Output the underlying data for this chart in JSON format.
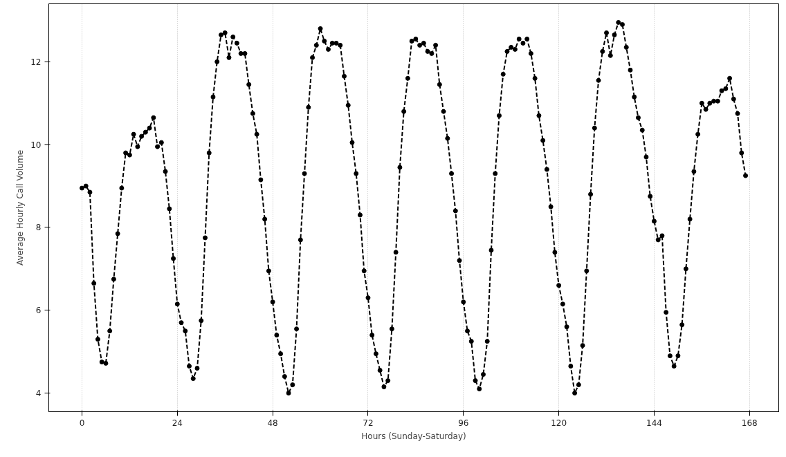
{
  "chart_data": {
    "type": "line",
    "xlabel": "Hours (Sunday-Saturday)",
    "ylabel": "Average Hourly Call Volume",
    "xlim": [
      -8.35,
      175.35
    ],
    "ylim": [
      3.55,
      13.4
    ],
    "xticks": [
      0,
      24,
      48,
      72,
      96,
      120,
      144,
      168
    ],
    "yticks": [
      4,
      6,
      8,
      10,
      12
    ],
    "grid": "x",
    "marker": "circle",
    "line_style": "dashed",
    "x": [
      0,
      1,
      2,
      3,
      4,
      5,
      6,
      7,
      8,
      9,
      10,
      11,
      12,
      13,
      14,
      15,
      16,
      17,
      18,
      19,
      20,
      21,
      22,
      23,
      24,
      25,
      26,
      27,
      28,
      29,
      30,
      31,
      32,
      33,
      34,
      35,
      36,
      37,
      38,
      39,
      40,
      41,
      42,
      43,
      44,
      45,
      46,
      47,
      48,
      49,
      50,
      51,
      52,
      53,
      54,
      55,
      56,
      57,
      58,
      59,
      60,
      61,
      62,
      63,
      64,
      65,
      66,
      67,
      68,
      69,
      70,
      71,
      72,
      73,
      74,
      75,
      76,
      77,
      78,
      79,
      80,
      81,
      82,
      83,
      84,
      85,
      86,
      87,
      88,
      89,
      90,
      91,
      92,
      93,
      94,
      95,
      96,
      97,
      98,
      99,
      100,
      101,
      102,
      103,
      104,
      105,
      106,
      107,
      108,
      109,
      110,
      111,
      112,
      113,
      114,
      115,
      116,
      117,
      118,
      119,
      120,
      121,
      122,
      123,
      124,
      125,
      126,
      127,
      128,
      129,
      130,
      131,
      132,
      133,
      134,
      135,
      136,
      137,
      138,
      139,
      140,
      141,
      142,
      143,
      144,
      145,
      146,
      147,
      148,
      149,
      150,
      151,
      152,
      153,
      154,
      155,
      156,
      157,
      158,
      159,
      160,
      161,
      162,
      163,
      164,
      165,
      166,
      167
    ],
    "series": [
      {
        "color": "#000000",
        "values": [
          8.95,
          9.0,
          8.85,
          6.65,
          5.3,
          4.75,
          4.72,
          5.5,
          6.75,
          7.85,
          8.95,
          9.8,
          9.75,
          10.25,
          9.95,
          10.2,
          10.3,
          10.4,
          10.65,
          9.95,
          10.05,
          9.35,
          8.45,
          7.25,
          6.15,
          5.7,
          5.5,
          4.65,
          4.35,
          4.6,
          5.75,
          7.75,
          9.8,
          11.15,
          12.0,
          12.65,
          12.7,
          12.1,
          12.6,
          12.45,
          12.2,
          12.2,
          11.45,
          10.75,
          10.25,
          9.15,
          8.2,
          6.95,
          6.2,
          5.4,
          4.95,
          4.4,
          4.0,
          4.2,
          5.55,
          7.7,
          9.3,
          10.9,
          12.1,
          12.4,
          12.8,
          12.5,
          12.3,
          12.45,
          12.45,
          12.4,
          11.65,
          10.95,
          10.05,
          9.3,
          8.3,
          6.95,
          6.3,
          5.4,
          4.95,
          4.55,
          4.15,
          4.3,
          5.55,
          7.4,
          9.45,
          10.8,
          11.6,
          12.5,
          12.55,
          12.4,
          12.45,
          12.25,
          12.2,
          12.4,
          11.45,
          10.8,
          10.15,
          9.3,
          8.4,
          7.2,
          6.2,
          5.5,
          5.25,
          4.3,
          4.1,
          4.45,
          5.25,
          7.45,
          9.3,
          10.7,
          11.7,
          12.25,
          12.35,
          12.3,
          12.55,
          12.45,
          12.55,
          12.2,
          11.6,
          10.7,
          10.1,
          9.4,
          8.5,
          7.4,
          6.6,
          6.15,
          5.6,
          4.65,
          4.0,
          4.2,
          5.15,
          6.95,
          8.8,
          10.4,
          11.55,
          12.25,
          12.7,
          12.15,
          12.65,
          12.95,
          12.9,
          12.35,
          11.8,
          11.15,
          10.65,
          10.35,
          9.7,
          8.75,
          8.15,
          7.7,
          7.8,
          5.95,
          4.9,
          4.65,
          4.9,
          5.65,
          7.0,
          8.2,
          9.35,
          10.25,
          11.0,
          10.85,
          11.0,
          11.05,
          11.05,
          11.3,
          11.35,
          11.6,
          11.1,
          10.75,
          9.8,
          9.25
        ]
      }
    ]
  }
}
